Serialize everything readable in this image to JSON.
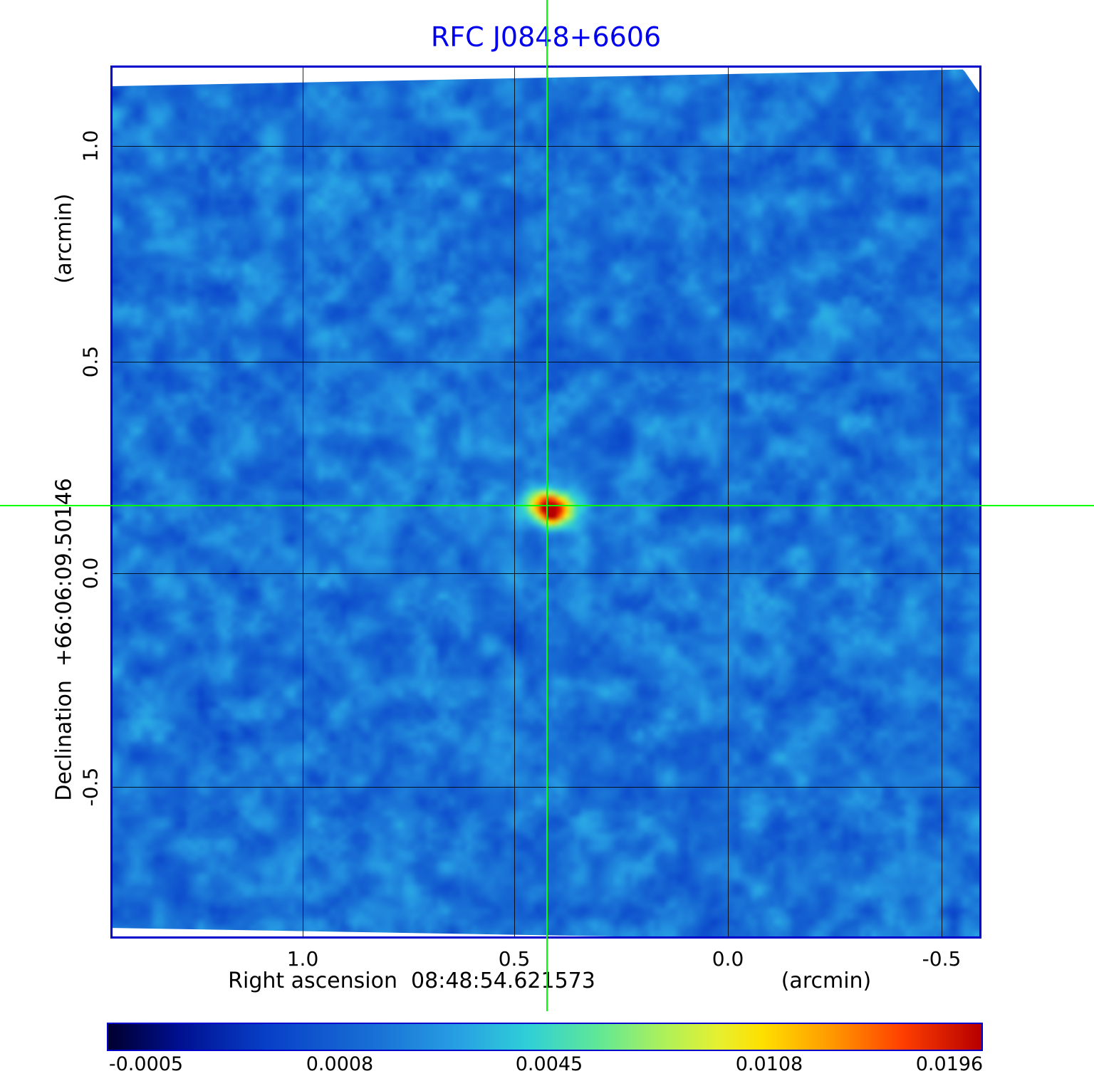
{
  "title": {
    "text": "RFC J0848+6606"
  },
  "axes": {
    "x_label": "Right ascension  08:48:54.621573",
    "x_unit": "(arcmin)",
    "x_ticks": [
      "1.0",
      "0.5",
      "0.0",
      "-0.5"
    ],
    "y_label": "Declination  +66:06:09.50146",
    "y_unit": "(arcmin)",
    "y_ticks": [
      "1.0",
      "0.5",
      "0.0",
      "-0.5"
    ]
  },
  "colorbar": {
    "labels": [
      "-0.0005",
      "0.0008",
      "0.0045",
      "0.0108",
      "0.0196"
    ]
  },
  "colors": {
    "title": "#0000ee",
    "frame": "#0000cc",
    "grid": "#000000",
    "crosshair": "#00ff00"
  },
  "chart_data": {
    "type": "heatmap",
    "title": "RFC J0848+6606",
    "xlabel": "Right ascension 08:48:54.621573 (arcmin)",
    "ylabel": "Declination +66:06:09.50146 (arcmin)",
    "x_range_arcmin": [
      1.45,
      -0.59
    ],
    "y_range_arcmin": [
      -0.86,
      1.19
    ],
    "x_ticks": [
      1.0,
      0.5,
      0.0,
      -0.5
    ],
    "y_ticks": [
      1.0,
      0.5,
      0.0,
      -0.5
    ],
    "grid": true,
    "intensity_scale_ticks": [
      -0.0005,
      0.0008,
      0.0045,
      0.0108,
      0.0196
    ],
    "intensity_range": [
      -0.0005,
      0.0196
    ],
    "colormap": "rainbow (dark navy - blue - cyan - green - yellow - orange - red)",
    "background": "correlated blue noise near zero intensity",
    "peak_source": {
      "x_arcmin": 0.42,
      "y_arcmin": 0.16,
      "peak_intensity": 0.0196
    },
    "crosshair_marker": {
      "x_arcmin": 0.42,
      "y_arcmin": 0.16
    }
  }
}
